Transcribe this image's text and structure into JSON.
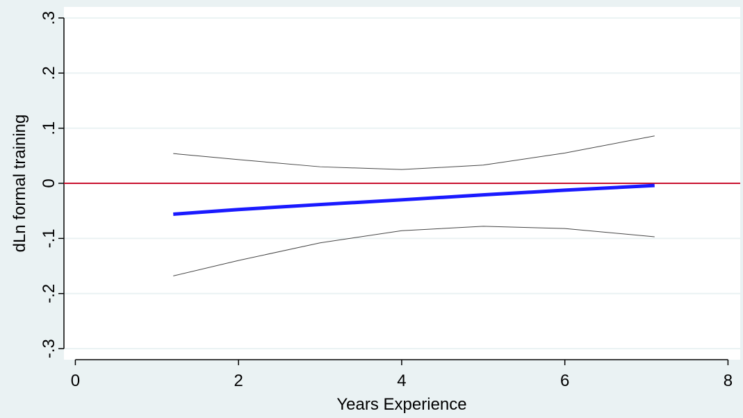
{
  "chart_data": {
    "type": "line",
    "x_label": "Years Experience",
    "y_label": "dLn formal training",
    "x": [
      1.2,
      2,
      3,
      4,
      5,
      6,
      7.1
    ],
    "series": [
      {
        "color": "#1a1aff",
        "width": 5,
        "values": [
          -0.056,
          -0.0475,
          -0.0385,
          -0.03,
          -0.021,
          -0.0125,
          -0.004
        ]
      },
      {
        "color": "#444444",
        "width": 1,
        "values": [
          0.054,
          0.043,
          0.03,
          0.025,
          0.033,
          0.055,
          0.086
        ]
      },
      {
        "color": "#444444",
        "width": 1,
        "values": [
          -0.168,
          -0.14,
          -0.108,
          -0.086,
          -0.078,
          -0.082,
          -0.097
        ]
      }
    ],
    "yline": 0,
    "yline_color": "#c8102e",
    "xlim": [
      -0.14,
      8.15
    ],
    "ylim": [
      -0.32,
      0.32
    ],
    "xticks": [
      0,
      2,
      4,
      6,
      8
    ],
    "yticks": [
      {
        "value": -0.3,
        "label": "-.3"
      },
      {
        "value": -0.2,
        "label": "-.2"
      },
      {
        "value": -0.1,
        "label": "-.1"
      },
      0,
      {
        "value": 0.1,
        "label": ".1"
      },
      {
        "value": 0.2,
        "label": ".2"
      },
      {
        "value": 0.3,
        "label": ".3"
      }
    ],
    "grid": true
  }
}
